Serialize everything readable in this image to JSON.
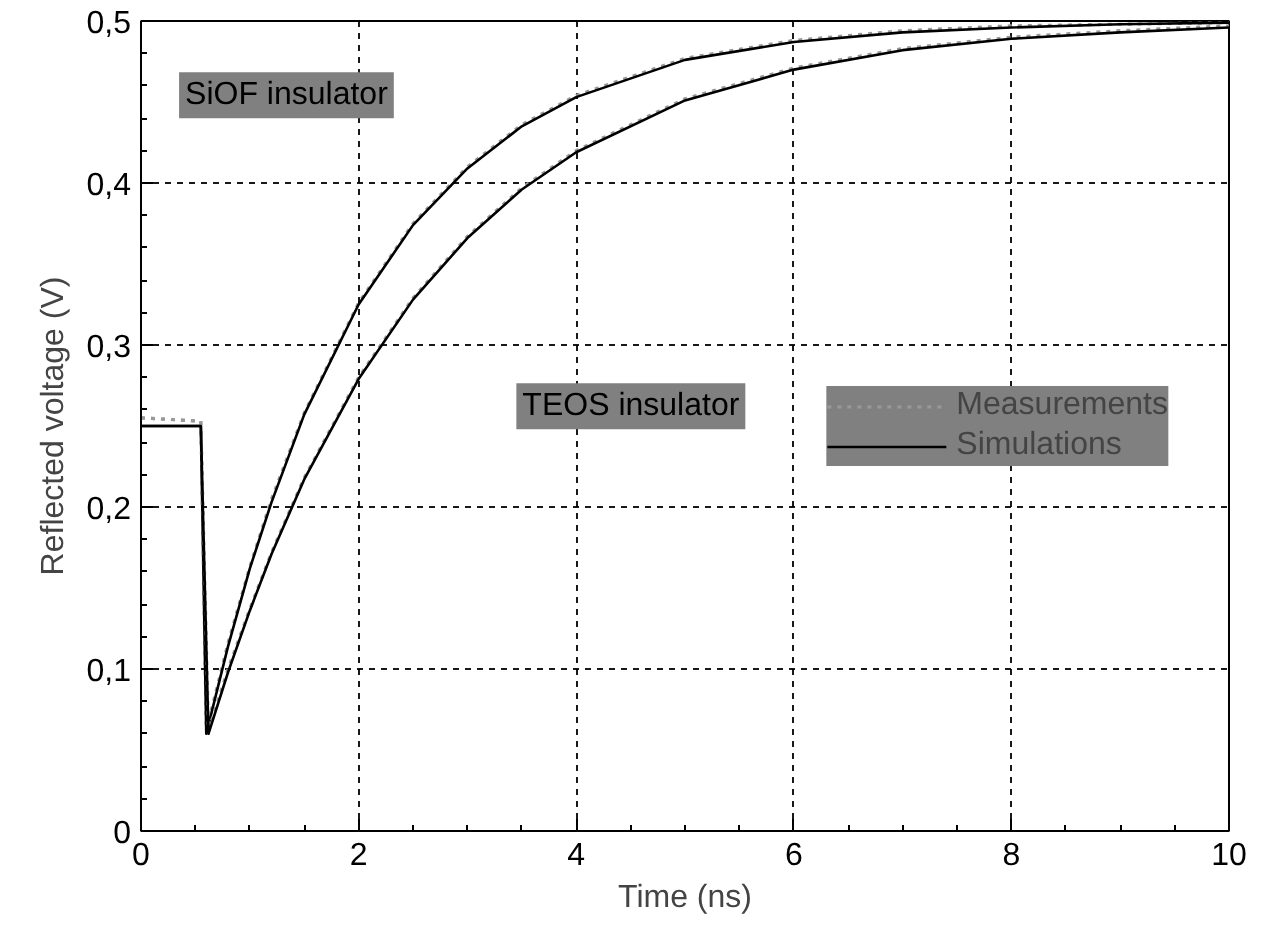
{
  "chart_data": {
    "type": "line",
    "xlabel": "Time (ns)",
    "ylabel": "Reflected voltage (V)",
    "xlim": [
      0,
      10
    ],
    "ylim": [
      0,
      0.5
    ],
    "xticks": [
      0,
      2,
      4,
      6,
      8,
      10
    ],
    "yticks": [
      0,
      {
        "value": 0.1,
        "label": "0,1"
      },
      {
        "value": 0.2,
        "label": "0,2"
      },
      {
        "value": 0.3,
        "label": "0,3"
      },
      {
        "value": 0.4,
        "label": "0,4"
      },
      {
        "value": 0.5,
        "label": "0,5"
      }
    ],
    "grid": true,
    "legend": "right",
    "marker": "none",
    "annotations": [
      "SiOF insulator",
      "TEOS insulator"
    ],
    "series": [
      {
        "name": "Measurements",
        "color": "#999999",
        "line_style": "dotted",
        "x": [
          0,
          0.55,
          0.6,
          0.8,
          1.0,
          1.2,
          1.5,
          2,
          2.5,
          3,
          3.5,
          4,
          5,
          6,
          7,
          8,
          9,
          10
        ],
        "values": [
          0.255,
          0.253,
          0.062,
          0.116,
          0.163,
          0.205,
          0.258,
          0.326,
          0.375,
          0.41,
          0.436,
          0.454,
          0.477,
          0.488,
          0.494,
          0.497,
          0.498,
          0.499
        ]
      },
      {
        "name": "Simulations",
        "color": "#000000",
        "line_style": "solid",
        "x": [
          0,
          0.55,
          0.6,
          0.8,
          1.0,
          1.2,
          1.5,
          2,
          2.5,
          3,
          3.5,
          4,
          5,
          6,
          7,
          8,
          9,
          10
        ],
        "values": [
          0.25,
          0.25,
          0.06,
          0.114,
          0.162,
          0.203,
          0.257,
          0.325,
          0.374,
          0.409,
          0.435,
          0.453,
          0.476,
          0.487,
          0.493,
          0.496,
          0.498,
          0.499
        ]
      },
      {
        "color": "#999999",
        "line_style": "dotted",
        "x": [
          0,
          0.55,
          0.62,
          0.8,
          1.0,
          1.2,
          1.5,
          2,
          2.5,
          3,
          3.5,
          4,
          5,
          6,
          7,
          8,
          9,
          10
        ],
        "values": [
          0.255,
          0.253,
          0.062,
          0.1,
          0.137,
          0.172,
          0.218,
          0.28,
          0.329,
          0.367,
          0.397,
          0.42,
          0.452,
          0.471,
          0.483,
          0.49,
          0.494,
          0.497
        ]
      },
      {
        "color": "#000000",
        "line_style": "solid",
        "x": [
          0,
          0.55,
          0.62,
          0.8,
          1.0,
          1.2,
          1.5,
          2,
          2.5,
          3,
          3.5,
          4,
          5,
          6,
          7,
          8,
          9,
          10
        ],
        "values": [
          0.25,
          0.25,
          0.06,
          0.098,
          0.136,
          0.171,
          0.217,
          0.279,
          0.328,
          0.366,
          0.396,
          0.419,
          0.451,
          0.47,
          0.482,
          0.489,
          0.493,
          0.496
        ]
      }
    ]
  }
}
